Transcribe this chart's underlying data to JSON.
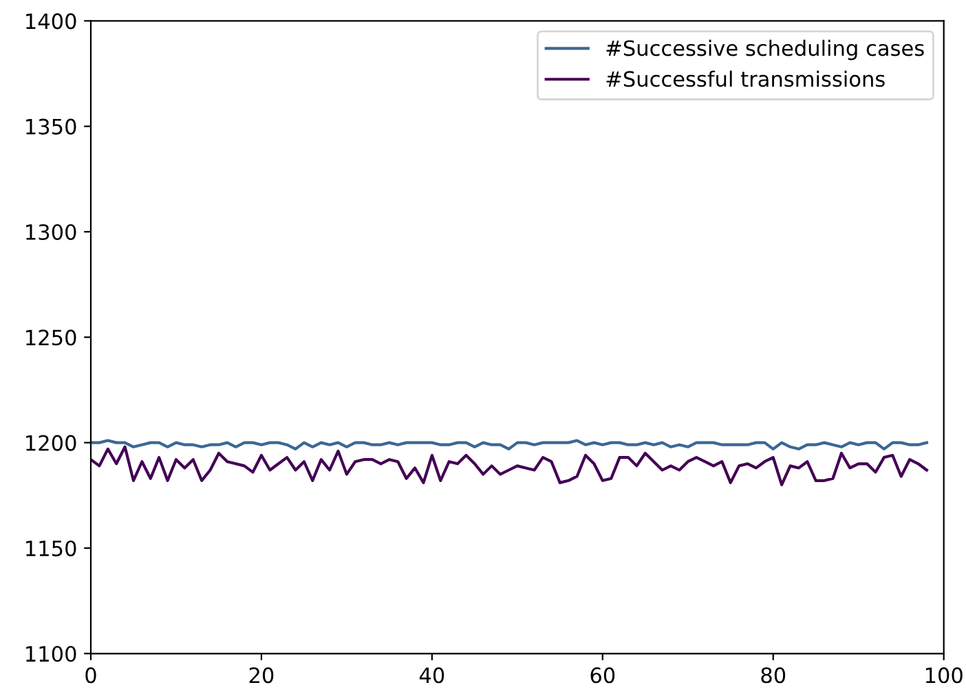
{
  "chart_data": {
    "type": "line",
    "xlim": [
      0,
      100
    ],
    "xticks": [
      0,
      20,
      40,
      60,
      80,
      100
    ],
    "ylim": [
      1100,
      1400
    ],
    "yticks": [
      1100,
      1150,
      1200,
      1250,
      1300,
      1350,
      1400
    ],
    "legend": "top right",
    "grid": false,
    "x": [
      0,
      1,
      2,
      3,
      4,
      5,
      6,
      7,
      8,
      9,
      10,
      11,
      12,
      13,
      14,
      15,
      16,
      17,
      18,
      19,
      20,
      21,
      22,
      23,
      24,
      25,
      26,
      27,
      28,
      29,
      30,
      31,
      32,
      33,
      34,
      35,
      36,
      37,
      38,
      39,
      40,
      41,
      42,
      43,
      44,
      45,
      46,
      47,
      48,
      49,
      50,
      51,
      52,
      53,
      54,
      55,
      56,
      57,
      58,
      59,
      60,
      61,
      62,
      63,
      64,
      65,
      66,
      67,
      68,
      69,
      70,
      71,
      72,
      73,
      74,
      75,
      76,
      77,
      78,
      79,
      80,
      81,
      82,
      83,
      84,
      85,
      86,
      87,
      88,
      89,
      90,
      91,
      92,
      93,
      94,
      95,
      96,
      97,
      98
    ],
    "series": [
      {
        "name": "#Successive scheduling cases",
        "color": "#3b6894",
        "values": [
          1200,
          1200,
          1201,
          1200,
          1200,
          1198,
          1199,
          1200,
          1200,
          1198,
          1200,
          1199,
          1199,
          1198,
          1199,
          1199,
          1200,
          1198,
          1200,
          1200,
          1199,
          1200,
          1200,
          1199,
          1197,
          1200,
          1198,
          1200,
          1199,
          1200,
          1198,
          1200,
          1200,
          1199,
          1199,
          1200,
          1199,
          1200,
          1200,
          1200,
          1200,
          1199,
          1199,
          1200,
          1200,
          1198,
          1200,
          1199,
          1199,
          1197,
          1200,
          1200,
          1199,
          1200,
          1200,
          1200,
          1200,
          1201,
          1199,
          1200,
          1199,
          1200,
          1200,
          1199,
          1199,
          1200,
          1199,
          1200,
          1198,
          1199,
          1198,
          1200,
          1200,
          1200,
          1199,
          1199,
          1199,
          1199,
          1200,
          1200,
          1197,
          1200,
          1198,
          1197,
          1199,
          1199,
          1200,
          1199,
          1198,
          1200,
          1199,
          1200,
          1200,
          1197,
          1200,
          1200,
          1199,
          1199,
          1200
        ]
      },
      {
        "name": "#Successful transmissions",
        "color": "#440154",
        "values": [
          1192,
          1189,
          1197,
          1190,
          1198,
          1182,
          1191,
          1183,
          1193,
          1182,
          1192,
          1188,
          1192,
          1182,
          1187,
          1195,
          1191,
          1190,
          1189,
          1186,
          1194,
          1187,
          1190,
          1193,
          1187,
          1191,
          1182,
          1192,
          1187,
          1196,
          1185,
          1191,
          1192,
          1192,
          1190,
          1192,
          1191,
          1183,
          1188,
          1181,
          1194,
          1182,
          1191,
          1190,
          1194,
          1190,
          1185,
          1189,
          1185,
          1187,
          1189,
          1188,
          1187,
          1193,
          1191,
          1181,
          1182,
          1184,
          1194,
          1190,
          1182,
          1183,
          1193,
          1193,
          1189,
          1195,
          1191,
          1187,
          1189,
          1187,
          1191,
          1193,
          1191,
          1189,
          1191,
          1181,
          1189,
          1190,
          1188,
          1191,
          1193,
          1180,
          1189,
          1188,
          1191,
          1182,
          1182,
          1183,
          1195,
          1188,
          1190,
          1190,
          1186,
          1193,
          1194,
          1184,
          1192,
          1190,
          1187
        ]
      }
    ]
  }
}
